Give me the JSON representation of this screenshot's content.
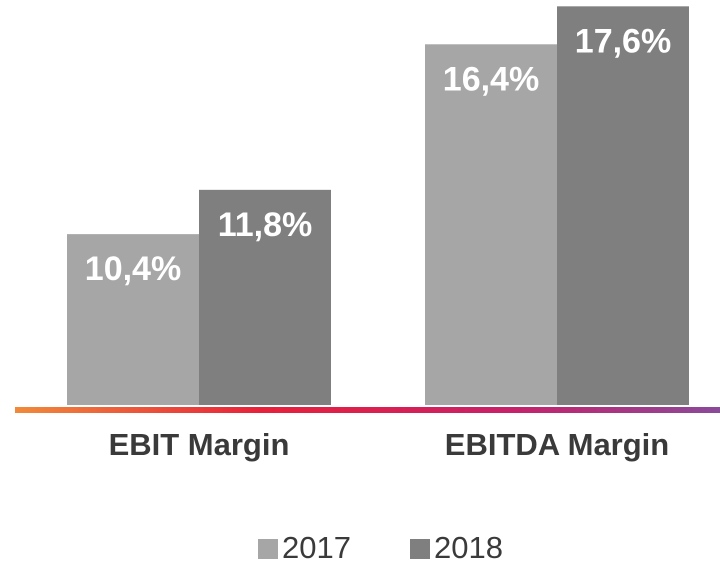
{
  "chart_data": {
    "type": "bar",
    "categories": [
      "EBIT Margin",
      "EBITDA Margin"
    ],
    "series": [
      {
        "name": "2017",
        "color": "#a6a6a6",
        "values": [
          10.4,
          16.4
        ],
        "value_labels": [
          "10,4%",
          "16,4%"
        ]
      },
      {
        "name": "2018",
        "color": "#7f7f7f",
        "values": [
          11.8,
          17.6
        ],
        "value_labels": [
          "11,8%",
          "17,6%"
        ]
      }
    ],
    "ylim": [
      5,
      17.8
    ]
  }
}
